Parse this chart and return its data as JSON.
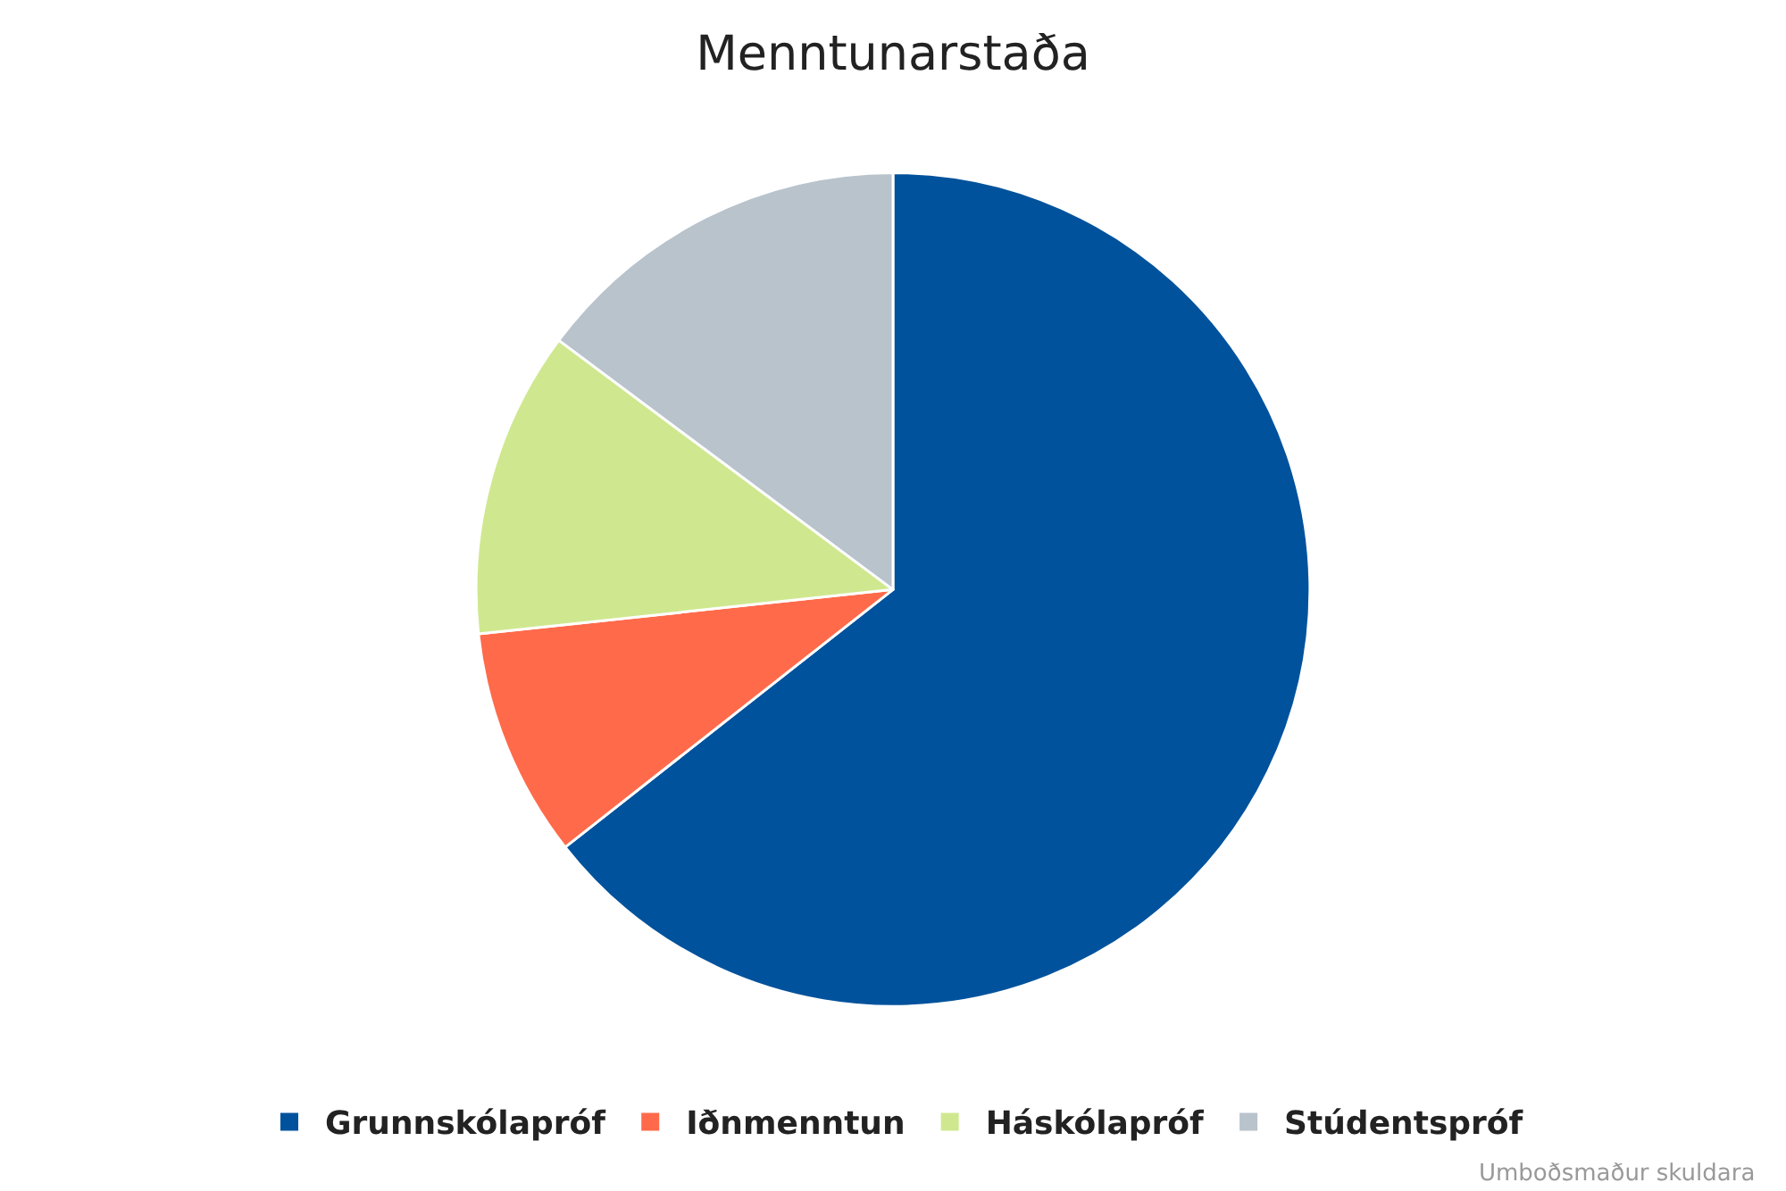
{
  "chart_data": {
    "type": "pie",
    "title": "Menntunarstaða",
    "categories": [
      "Grunnskólapróf",
      "Iðnmenntun",
      "Háskólapróf",
      "Stúdentspróf"
    ],
    "values": [
      64.4,
      8.9,
      11.9,
      14.8
    ],
    "colors": [
      "#00529c",
      "#ff6a4a",
      "#cfe88f",
      "#b8c3cc"
    ],
    "legend": "bottom",
    "annotations": [
      "Umboðsmaður skuldara"
    ]
  }
}
